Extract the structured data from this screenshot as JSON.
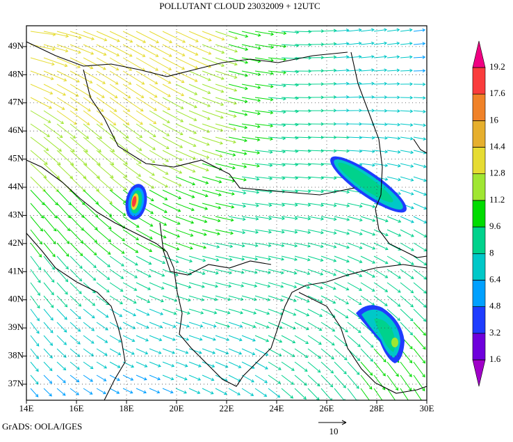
{
  "title": "POLLUTANT CLOUD 23032009 + 12UTC",
  "map": {
    "xlim": [
      14,
      30
    ],
    "ylim": [
      36.43,
      49.74
    ],
    "xticks": [
      {
        "value": 14,
        "label": "14E"
      },
      {
        "value": 16,
        "label": "16E"
      },
      {
        "value": 18,
        "label": "18E"
      },
      {
        "value": 20,
        "label": "20E"
      },
      {
        "value": 22,
        "label": "22E"
      },
      {
        "value": 24,
        "label": "24E"
      },
      {
        "value": 26,
        "label": "26E"
      },
      {
        "value": 28,
        "label": "28E"
      },
      {
        "value": 30,
        "label": "30E"
      }
    ],
    "yticks": [
      {
        "value": 37,
        "label": "37N"
      },
      {
        "value": 38,
        "label": "38N"
      },
      {
        "value": 39,
        "label": "39N"
      },
      {
        "value": 40,
        "label": "40N"
      },
      {
        "value": 41,
        "label": "41N"
      },
      {
        "value": 42,
        "label": "42N"
      },
      {
        "value": 43,
        "label": "43N"
      },
      {
        "value": 44,
        "label": "44N"
      },
      {
        "value": 45,
        "label": "45N"
      },
      {
        "value": 46,
        "label": "46N"
      },
      {
        "value": 47,
        "label": "47N"
      },
      {
        "value": 48,
        "label": "48N"
      },
      {
        "value": 49,
        "label": "49N"
      }
    ]
  },
  "colorbar": {
    "levels": [
      1.6,
      3.2,
      4.8,
      6.4,
      8,
      9.6,
      11.2,
      12.8,
      14.4,
      16,
      17.6,
      19.2
    ],
    "colors": [
      "#a000c8",
      "#6e00dc",
      "#1e3cff",
      "#00a0ff",
      "#00c8c8",
      "#00d28c",
      "#00dc00",
      "#a0e632",
      "#e6dc32",
      "#e6af2d",
      "#f08228",
      "#fa3c3c",
      "#f00082"
    ]
  },
  "footer": "GrADS: OOLA/IGES",
  "vector_scale": "10"
}
